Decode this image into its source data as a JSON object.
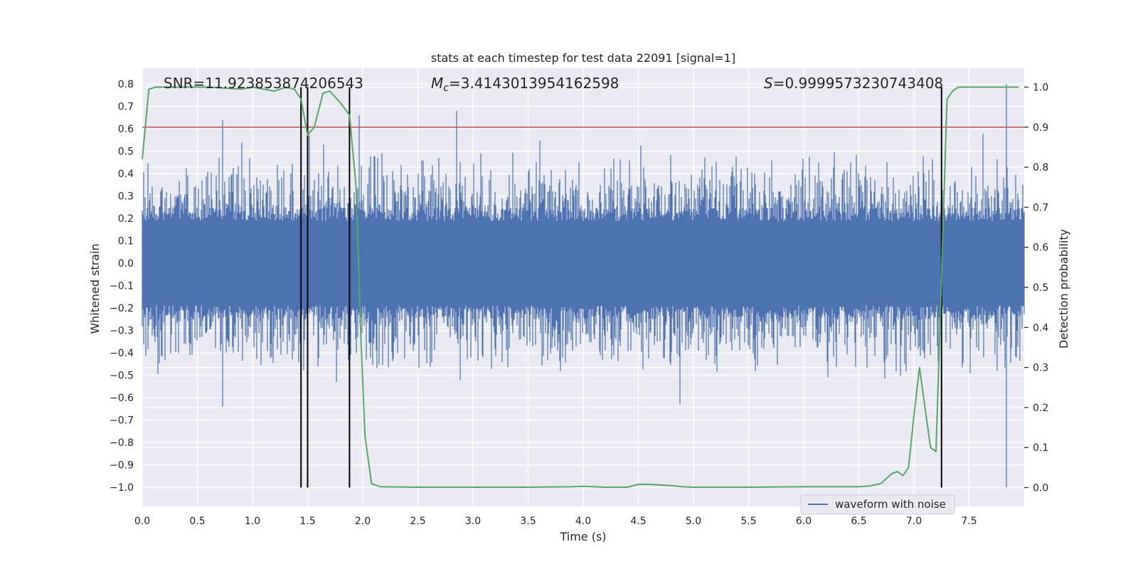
{
  "chart_data": {
    "type": "line",
    "title": "stats at each timestep for test data 22091 [signal=1]",
    "xlabel": "Time (s)",
    "ylabel_left": "Whitened strain",
    "ylabel_right": "Detection probability",
    "xlim": [
      0.0,
      8.0
    ],
    "ylim_left": [
      -1.085,
      0.87
    ],
    "ylim_right": [
      -0.047,
      1.047
    ],
    "x_ticks": [
      "0.0",
      "0.5",
      "1.0",
      "1.5",
      "2.0",
      "2.5",
      "3.0",
      "3.5",
      "4.0",
      "4.5",
      "5.0",
      "5.5",
      "6.0",
      "6.5",
      "7.0",
      "7.5"
    ],
    "y_left_ticks": [
      "0.8",
      "0.7",
      "0.6",
      "0.5",
      "0.4",
      "0.3",
      "0.2",
      "0.1",
      "0.0",
      "−0.1",
      "−0.2",
      "−0.3",
      "−0.4",
      "−0.5",
      "−0.6",
      "−0.7",
      "−0.8",
      "−0.9",
      "−1.0"
    ],
    "y_right_ticks": [
      "1.0",
      "0.9",
      "0.8",
      "0.7",
      "0.6",
      "0.5",
      "0.4",
      "0.3",
      "0.2",
      "0.1",
      "0.0"
    ],
    "annotations": {
      "snr": "SNR=11.923853874206543",
      "mc_symbol": "M",
      "mc_sub": "c",
      "mc_value": "=3.4143013954162598",
      "s_symbol": "S",
      "s_value": "=0.9999573230743408"
    },
    "legend": {
      "label": "waveform with noise",
      "location": "lower-right"
    },
    "threshold_line": {
      "y_right": 0.9,
      "color": "#c44e52"
    },
    "vertical_lines_x": [
      1.44,
      1.5,
      1.88,
      7.25
    ],
    "waveform": {
      "name": "waveform with noise",
      "color": "#4c72b0",
      "duration": 8.0,
      "core_amplitude": 0.25,
      "peak_amplitude": 0.6,
      "notable_spikes": [
        {
          "x": 0.73,
          "y": 0.64
        },
        {
          "x": 0.73,
          "y": -0.64
        },
        {
          "x": 1.97,
          "y": 0.66
        },
        {
          "x": 2.85,
          "y": 0.68
        },
        {
          "x": 4.88,
          "y": -0.63
        },
        {
          "x": 7.84,
          "y": 0.8
        },
        {
          "x": 7.84,
          "y": -1.0
        }
      ]
    },
    "probability_series": {
      "name": "detection probability",
      "color": "#55a868",
      "x": [
        0.0,
        0.06,
        0.12,
        0.3,
        0.6,
        0.9,
        1.0,
        1.1,
        1.2,
        1.3,
        1.38,
        1.44,
        1.5,
        1.56,
        1.64,
        1.7,
        1.8,
        1.88,
        1.94,
        1.98,
        2.02,
        2.08,
        2.16,
        2.5,
        3.0,
        3.5,
        3.9,
        4.0,
        4.2,
        4.4,
        4.5,
        4.6,
        4.8,
        4.9,
        5.0,
        5.5,
        6.0,
        6.5,
        6.6,
        6.7,
        6.8,
        6.85,
        6.9,
        6.95,
        7.0,
        7.05,
        7.1,
        7.15,
        7.2,
        7.25,
        7.3,
        7.35,
        7.4,
        7.5,
        7.6,
        7.8,
        7.95
      ],
      "y": [
        0.82,
        0.995,
        1.0,
        1.0,
        1.0,
        0.995,
        1.0,
        0.995,
        0.99,
        1.0,
        0.995,
        0.97,
        0.88,
        0.9,
        0.985,
        0.99,
        0.96,
        0.93,
        0.75,
        0.4,
        0.13,
        0.01,
        0.002,
        0.001,
        0.001,
        0.001,
        0.002,
        0.003,
        0.001,
        0.001,
        0.008,
        0.008,
        0.005,
        0.002,
        0.001,
        0.001,
        0.002,
        0.002,
        0.004,
        0.01,
        0.035,
        0.04,
        0.03,
        0.05,
        0.18,
        0.3,
        0.2,
        0.1,
        0.09,
        0.53,
        0.97,
        0.99,
        1.0,
        1.0,
        1.0,
        1.0,
        1.0
      ]
    }
  }
}
